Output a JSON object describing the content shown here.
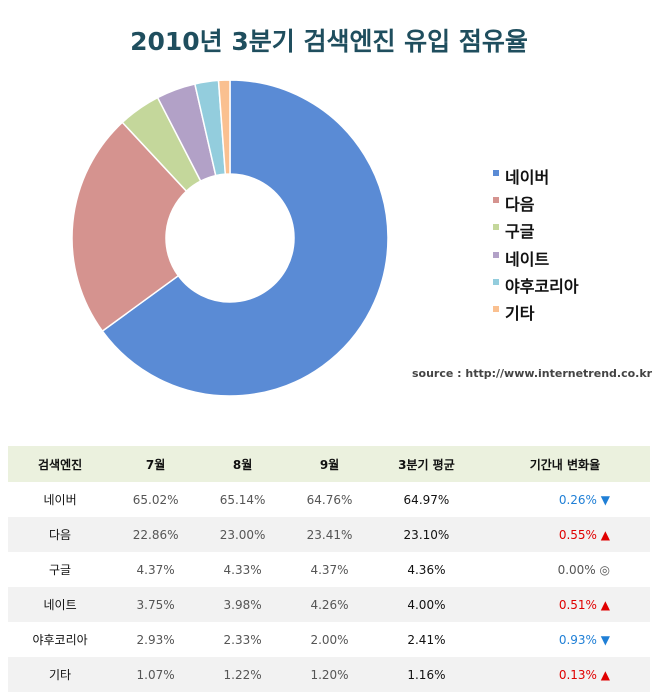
{
  "chart_data": {
    "type": "donut",
    "title": "2010년 3분기 검색엔진 유입 점유율",
    "categories": [
      "네이버",
      "다음",
      "구글",
      "네이트",
      "야후코리아",
      "기타"
    ],
    "values": [
      64.97,
      23.1,
      4.36,
      4.0,
      2.41,
      1.16
    ],
    "colors": [
      "#5a8bd5",
      "#d5938f",
      "#c4d79b",
      "#b2a1c7",
      "#93cddd",
      "#fac090"
    ],
    "legend_position": "right",
    "source": "source : http://www.internetrend.co.kr"
  },
  "table": {
    "headers": [
      "검색엔진",
      "7월",
      "8월",
      "9월",
      "3분기 평균",
      "기간내 변화율"
    ],
    "rows": [
      {
        "name": "네이버",
        "jul": "65.02%",
        "aug": "65.14%",
        "sep": "64.76%",
        "avg": "64.97%",
        "change": "0.26%",
        "symbol": "▼",
        "color": "#1f7fd6"
      },
      {
        "name": "다음",
        "jul": "22.86%",
        "aug": "23.00%",
        "sep": "23.41%",
        "avg": "23.10%",
        "change": "0.55%",
        "symbol": "▲",
        "color": "#e00000"
      },
      {
        "name": "구글",
        "jul": "4.37%",
        "aug": "4.33%",
        "sep": "4.37%",
        "avg": "4.36%",
        "change": "0.00%",
        "symbol": "◎",
        "color": "#555555"
      },
      {
        "name": "네이트",
        "jul": "3.75%",
        "aug": "3.98%",
        "sep": "4.26%",
        "avg": "4.00%",
        "change": "0.51%",
        "symbol": "▲",
        "color": "#e00000"
      },
      {
        "name": "야후코리아",
        "jul": "2.93%",
        "aug": "2.33%",
        "sep": "2.00%",
        "avg": "2.41%",
        "change": "0.93%",
        "symbol": "▼",
        "color": "#1f7fd6"
      },
      {
        "name": "기타",
        "jul": "1.07%",
        "aug": "1.22%",
        "sep": "1.20%",
        "avg": "1.16%",
        "change": "0.13%",
        "symbol": "▲",
        "color": "#e00000"
      }
    ]
  }
}
